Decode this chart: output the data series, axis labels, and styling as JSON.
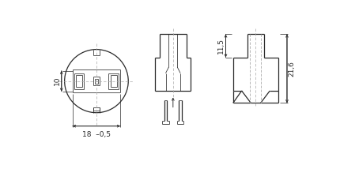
{
  "bg_color": "#ffffff",
  "line_color": "#2a2a2a",
  "dim_color": "#2a2a2a",
  "centerline_color": "#aaaaaa",
  "lw": 0.9,
  "lw_thin": 0.55,
  "fig_w": 4.3,
  "fig_h": 2.33,
  "dim_10_label": "10",
  "dim_18_label": "18  –0,5",
  "dim_115_label": "11,5",
  "dim_216_label": "21,6"
}
